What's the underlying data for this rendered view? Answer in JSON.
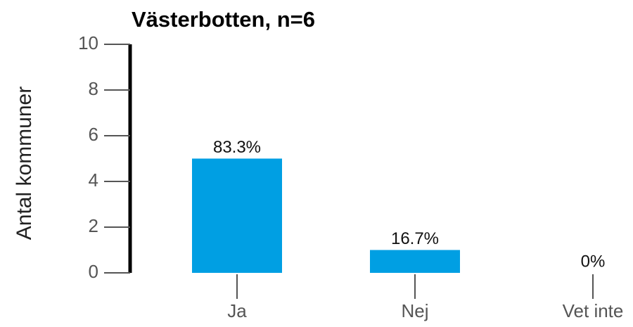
{
  "chart_data": {
    "type": "bar",
    "title": "Västerbotten, n=6",
    "y_label": "Antal kommuner",
    "categories": [
      "Ja",
      "Nej",
      "Vet inte"
    ],
    "values": [
      5,
      1,
      0
    ],
    "labels": [
      "83.3%",
      "16.7%",
      "0%"
    ],
    "color": "#009fe3",
    "ylim": [
      0,
      10
    ],
    "yticks": [
      0,
      2,
      4,
      6,
      8,
      10
    ],
    "grid": false
  }
}
